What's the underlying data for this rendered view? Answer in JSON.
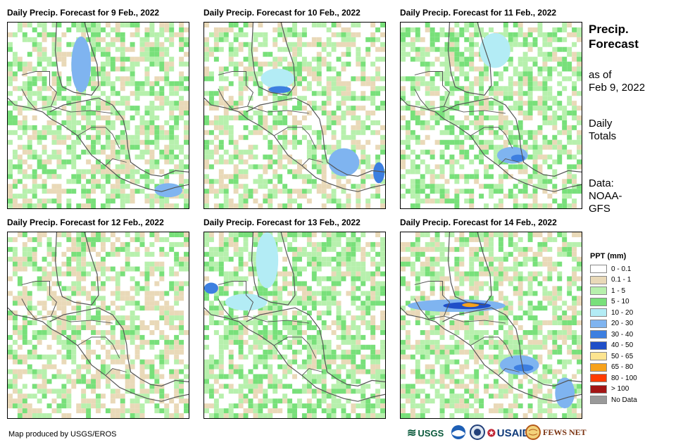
{
  "panels": [
    {
      "title": "Daily Precip. Forecast for 9 Feb., 2022"
    },
    {
      "title": "Daily Precip. Forecast for 10 Feb., 2022"
    },
    {
      "title": "Daily Precip. Forecast for 11 Feb., 2022"
    },
    {
      "title": "Daily Precip. Forecast for 12 Feb., 2022"
    },
    {
      "title": "Daily Precip. Forecast for 13 Feb., 2022"
    },
    {
      "title": "Daily Precip. Forecast for 14 Feb., 2022"
    }
  ],
  "side": {
    "title_line1": "Precip.",
    "title_line2": "Forecast",
    "asof_line1": "as of",
    "asof_line2": "Feb 9, 2022",
    "totals_line1": "Daily",
    "totals_line2": "Totals",
    "data_line1": "Data:",
    "data_line2": "NOAA-",
    "data_line3": "GFS"
  },
  "legend": {
    "title": "PPT (mm)",
    "items": [
      {
        "label": "0 - 0.1",
        "color": "#ffffff"
      },
      {
        "label": "0.1 - 1",
        "color": "#e9d9b8"
      },
      {
        "label": "1 - 5",
        "color": "#b7f0ad"
      },
      {
        "label": "5 - 10",
        "color": "#78e07a"
      },
      {
        "label": "10 - 20",
        "color": "#b3ecf5"
      },
      {
        "label": "20 - 30",
        "color": "#7fb4f0"
      },
      {
        "label": "30 - 40",
        "color": "#3d7fe0"
      },
      {
        "label": "40 - 50",
        "color": "#1f4fc8"
      },
      {
        "label": "50 - 65",
        "color": "#fce490"
      },
      {
        "label": "65 - 80",
        "color": "#f7a21c"
      },
      {
        "label": "80 - 100",
        "color": "#ff3c00"
      },
      {
        "label": "> 100",
        "color": "#a31515"
      },
      {
        "label": "No Data",
        "color": "#999999"
      }
    ]
  },
  "credit": "Map produced by USGS/EROS",
  "logos": {
    "usgs": "USGS",
    "usaid": "USAID",
    "fewsnet": "FEWS NET"
  }
}
